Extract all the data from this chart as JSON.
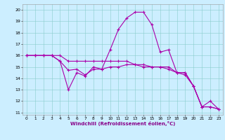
{
  "xlabel": "Windchill (Refroidissement éolien,°C)",
  "xlim": [
    -0.5,
    23.5
  ],
  "ylim": [
    10.8,
    20.5
  ],
  "yticks": [
    11,
    12,
    13,
    14,
    15,
    16,
    17,
    18,
    19,
    20
  ],
  "xticks": [
    0,
    1,
    2,
    3,
    4,
    5,
    6,
    7,
    8,
    9,
    10,
    11,
    12,
    13,
    14,
    15,
    16,
    17,
    18,
    19,
    20,
    21,
    22,
    23
  ],
  "background_color": "#cceeff",
  "line_color": "#aa00aa",
  "line1_x": [
    0,
    1,
    2,
    3,
    4,
    5,
    6,
    7,
    8,
    9,
    10,
    11,
    12,
    13,
    14,
    15,
    16,
    17,
    18,
    19,
    20,
    21,
    22,
    23
  ],
  "line1_y": [
    16,
    16,
    16,
    16,
    16,
    15.5,
    15.5,
    15.5,
    15.5,
    15.5,
    15.5,
    15.5,
    15.5,
    15.2,
    15,
    15,
    15,
    15,
    14.5,
    14.5,
    13.3,
    11.5,
    11.5,
    11.3
  ],
  "line2_x": [
    0,
    1,
    2,
    3,
    4,
    5,
    6,
    7,
    8,
    9,
    10,
    11,
    12,
    13,
    14,
    15,
    16,
    17,
    18,
    19,
    20,
    21,
    22,
    23
  ],
  "line2_y": [
    16,
    16,
    16,
    16,
    15.5,
    14.7,
    14.8,
    14.3,
    14.8,
    14.8,
    15,
    15,
    15.2,
    15.2,
    15.2,
    15,
    15,
    14.8,
    14.5,
    14.3,
    13.3,
    11.5,
    11.5,
    11.3
  ],
  "line3_x": [
    0,
    1,
    2,
    3,
    4,
    5,
    6,
    7,
    8,
    9,
    10,
    11,
    12,
    13,
    14,
    15,
    16,
    17,
    18,
    19,
    20,
    21,
    22,
    23
  ],
  "line3_y": [
    16,
    16,
    16,
    16,
    15.5,
    13,
    14.5,
    14.2,
    15,
    14.8,
    16.5,
    18.3,
    19.3,
    19.8,
    19.8,
    18.7,
    16.3,
    16.5,
    14.5,
    14.5,
    13.3,
    11.5,
    12,
    11.3
  ]
}
